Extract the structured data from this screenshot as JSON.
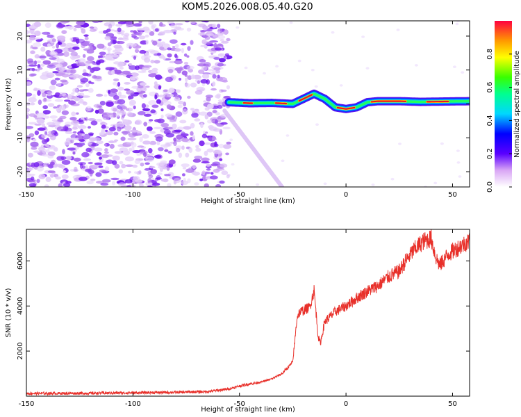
{
  "title": "KOM5.2026.008.05.40.G20",
  "colors": {
    "snr_line": "#e8302a",
    "track_core": "#e8102a",
    "speckle": "#8a3cf0"
  },
  "chart_data": [
    {
      "type": "heatmap",
      "name": "spectrogram",
      "xlabel": "Height of straight line (km)",
      "ylabel": "Frequency (Hz)",
      "xlim": [
        -150,
        58
      ],
      "ylim": [
        -24.5,
        24.5
      ],
      "xticks": [
        -150,
        -100,
        -50,
        0,
        50
      ],
      "yticks": [
        -20,
        -10,
        0,
        10,
        20
      ],
      "description_series": [
        {
          "name": "signal track",
          "x": [
            -55,
            -45,
            -35,
            -25,
            -20,
            -15,
            -10,
            -5,
            0,
            5,
            10,
            15,
            25,
            35,
            45,
            58
          ],
          "y": [
            0.5,
            0.2,
            0.3,
            0,
            1.5,
            3,
            1.5,
            -1,
            -1.5,
            -1,
            0.5,
            0.8,
            0.8,
            0.6,
            0.7,
            0.8
          ]
        },
        {
          "name": "diagonal trace",
          "x": [
            -57,
            -30
          ],
          "y": [
            -2,
            -24.5
          ]
        }
      ],
      "colorbar": {
        "label": "Normalized spectral amplitude",
        "range": [
          0,
          1
        ],
        "ticks": [
          "0.0",
          "0.2",
          "0.4",
          "0.6",
          "0.8"
        ]
      }
    },
    {
      "type": "line",
      "name": "snr",
      "xlabel": "Height of straight line (km)",
      "ylabel": "SNR (10 * v/v)",
      "xlim": [
        -150,
        58
      ],
      "ylim": [
        0,
        7400
      ],
      "xticks": [
        -150,
        -100,
        -50,
        0,
        50
      ],
      "yticks": [
        2000,
        4000,
        6000
      ],
      "series": [
        {
          "name": "SNR",
          "x": [
            -150,
            -120,
            -100,
            -80,
            -65,
            -55,
            -50,
            -45,
            -40,
            -35,
            -30,
            -25,
            -23,
            -22,
            -20,
            -17,
            -15,
            -13,
            -12,
            -10,
            -5,
            0,
            5,
            10,
            15,
            20,
            25,
            28,
            32,
            36,
            40,
            42,
            44,
            48,
            52,
            58
          ],
          "y": [
            120,
            130,
            150,
            170,
            200,
            320,
            450,
            550,
            620,
            760,
            1000,
            1500,
            3500,
            3700,
            3800,
            3950,
            4700,
            2600,
            2350,
            3300,
            3750,
            4000,
            4350,
            4650,
            4900,
            5300,
            5550,
            6000,
            6500,
            6850,
            7000,
            6200,
            5800,
            6300,
            6550,
            6900
          ]
        }
      ]
    }
  ]
}
